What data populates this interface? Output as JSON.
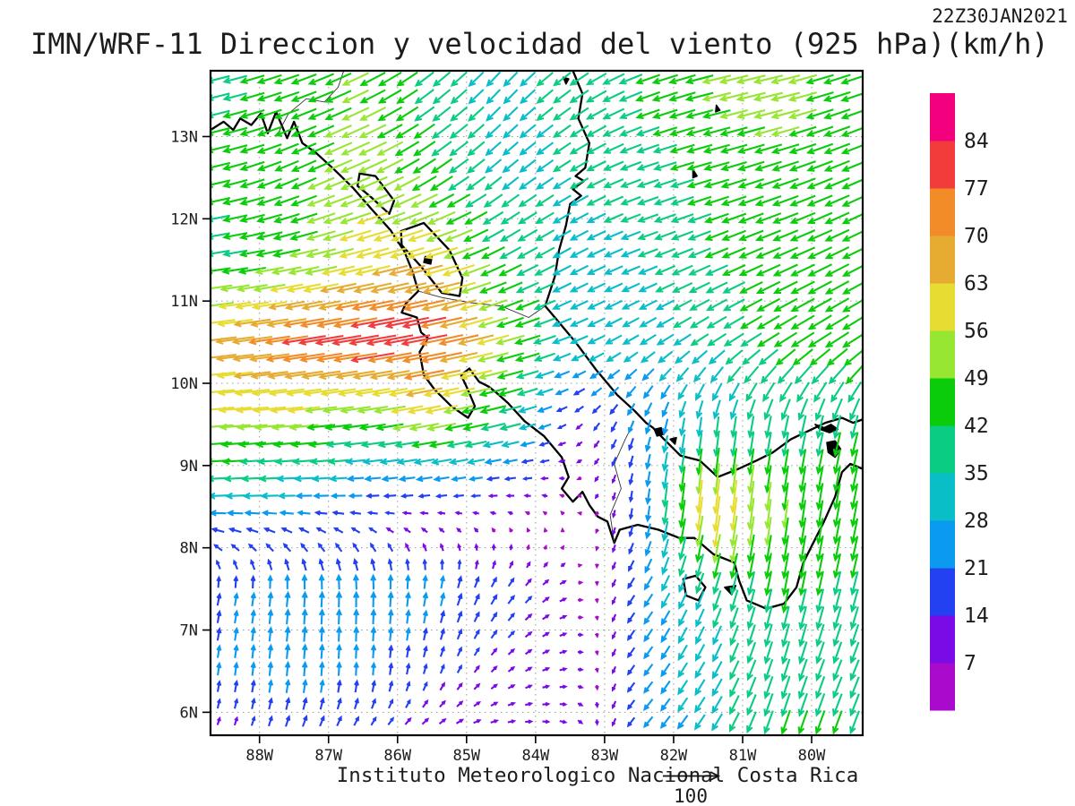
{
  "header": {
    "datetime": "22Z30JAN2021",
    "title": "IMN/WRF-11 Direccion y velocidad del viento (925 hPa)(km/h)"
  },
  "footer": {
    "credit": "Instituto Meteorologico Nacional Costa Rica",
    "reference_value": "100"
  },
  "chart_data": {
    "type": "vector_field_map",
    "model": "IMN/WRF-11",
    "variable": "Direccion y velocidad del viento",
    "level": "925 hPa",
    "units": "km/h",
    "valid_time": "22Z30JAN2021",
    "x_tick_labels": [
      "88W",
      "87W",
      "86W",
      "85W",
      "84W",
      "83W",
      "82W",
      "81W",
      "80W"
    ],
    "y_tick_labels": [
      "13N",
      "12N",
      "11N",
      "10N",
      "9N",
      "8N",
      "7N",
      "6N"
    ],
    "lon_west_range": [
      88.71,
      79.26
    ],
    "lat_range": [
      5.72,
      13.8
    ],
    "grid_dotted": true,
    "reference_vector_kmh": 100,
    "colorbar": {
      "boundaries": [
        7,
        14,
        21,
        28,
        35,
        42,
        49,
        56,
        63,
        70,
        77,
        84
      ],
      "colors_low_to_high": [
        "#AA0ACC",
        "#7A0AE6",
        "#2341F0",
        "#0A9BF0",
        "#0ABEC8",
        "#0ACC82",
        "#0ACC0A",
        "#96E632",
        "#E6DC32",
        "#E6AC32",
        "#F28C28",
        "#F23C3C",
        "#F2007E"
      ]
    },
    "wind_grid": {
      "lons_west": [
        88.5,
        87.5,
        86.5,
        85.5,
        84.5,
        83.5,
        82.5,
        81.5,
        80.5,
        79.5
      ],
      "lats": [
        13.5,
        12.5,
        11.5,
        10.5,
        9.5,
        8.5,
        7.5,
        6.5,
        5.75
      ],
      "u_kmh": [
        [
          -40,
          -42,
          -45,
          -30,
          -22,
          -30,
          -40,
          -48,
          -50,
          -45
        ],
        [
          -42,
          -40,
          -52,
          -38,
          -26,
          -30,
          -35,
          -42,
          -45,
          -42
        ],
        [
          -40,
          -48,
          -56,
          -62,
          -38,
          -30,
          -32,
          -38,
          -42,
          -40
        ],
        [
          -66,
          -76,
          -83,
          -80,
          -52,
          -30,
          -26,
          -30,
          -38,
          -40
        ],
        [
          -54,
          -52,
          -44,
          -52,
          -40,
          -10,
          -8,
          -4,
          -8,
          -10
        ],
        [
          -30,
          -24,
          -18,
          -13,
          -9,
          -4,
          -2,
          -8,
          -6,
          -8
        ],
        [
          4,
          2,
          0,
          4,
          10,
          10,
          -14,
          -12,
          -8,
          -10
        ],
        [
          3,
          2,
          1,
          5,
          9,
          11,
          -14,
          -16,
          -12,
          -14
        ],
        [
          4,
          7,
          9,
          11,
          12,
          10,
          -14,
          -18,
          -14,
          -15
        ]
      ],
      "v_kmh": [
        [
          -10,
          -15,
          -22,
          -24,
          -24,
          -22,
          -15,
          -12,
          -12,
          -15
        ],
        [
          -10,
          -18,
          -22,
          -25,
          -22,
          -18,
          -12,
          -12,
          -15,
          -18
        ],
        [
          -6,
          -10,
          -14,
          -16,
          -20,
          -16,
          -12,
          -16,
          -18,
          -20
        ],
        [
          -8,
          -12,
          -14,
          -16,
          -14,
          -12,
          -16,
          -20,
          -24,
          -26
        ],
        [
          -4,
          -5,
          -6,
          -10,
          -10,
          -6,
          -22,
          -34,
          -38,
          -40
        ],
        [
          -1,
          0,
          0,
          -1,
          1,
          4,
          -20,
          -66,
          -50,
          -45
        ],
        [
          20,
          26,
          27,
          24,
          16,
          4,
          -20,
          -34,
          -42,
          -40
        ],
        [
          21,
          24,
          22,
          15,
          8,
          2,
          -18,
          -28,
          -38,
          -35
        ],
        [
          10,
          17,
          12,
          7,
          2,
          -4,
          -16,
          -26,
          -42,
          -40
        ]
      ]
    }
  },
  "map_geometry": {
    "coastlines": [
      {
        "name": "pacific-central-america-coast",
        "closed": false,
        "thick": true,
        "pts": [
          [
            88.71,
            13.08
          ],
          [
            88.52,
            13.18
          ],
          [
            88.38,
            13.08
          ],
          [
            88.28,
            13.22
          ],
          [
            88.12,
            13.14
          ],
          [
            87.98,
            13.28
          ],
          [
            87.88,
            13.04
          ],
          [
            87.76,
            13.3
          ],
          [
            87.6,
            12.98
          ],
          [
            87.5,
            13.18
          ],
          [
            87.38,
            12.92
          ],
          [
            87.18,
            12.8
          ],
          [
            86.92,
            12.6
          ],
          [
            86.65,
            12.38
          ],
          [
            86.38,
            12.12
          ],
          [
            86.1,
            11.86
          ],
          [
            85.9,
            11.6
          ],
          [
            85.78,
            11.35
          ],
          [
            85.7,
            11.12
          ],
          [
            85.88,
            10.97
          ],
          [
            85.94,
            10.86
          ],
          [
            85.72,
            10.8
          ],
          [
            85.66,
            10.62
          ],
          [
            85.56,
            10.55
          ],
          [
            85.68,
            10.38
          ],
          [
            85.62,
            10.1
          ],
          [
            85.46,
            9.92
          ],
          [
            85.22,
            9.72
          ],
          [
            84.98,
            9.58
          ],
          [
            84.88,
            9.72
          ],
          [
            84.98,
            9.92
          ],
          [
            85.08,
            10.1
          ],
          [
            84.96,
            10.18
          ],
          [
            84.82,
            10.02
          ],
          [
            84.68,
            9.96
          ],
          [
            84.56,
            9.88
          ],
          [
            84.4,
            9.76
          ],
          [
            84.16,
            9.54
          ],
          [
            83.88,
            9.36
          ],
          [
            83.62,
            9.1
          ],
          [
            83.52,
            8.86
          ],
          [
            83.62,
            8.72
          ],
          [
            83.46,
            8.56
          ],
          [
            83.32,
            8.68
          ],
          [
            83.22,
            8.52
          ],
          [
            83.1,
            8.38
          ],
          [
            82.96,
            8.32
          ],
          [
            82.86,
            8.06
          ],
          [
            82.78,
            8.22
          ],
          [
            82.52,
            8.28
          ],
          [
            82.22,
            8.22
          ],
          [
            81.92,
            8.12
          ],
          [
            81.7,
            8.12
          ],
          [
            81.42,
            7.92
          ],
          [
            81.12,
            7.82
          ],
          [
            81.05,
            7.6
          ],
          [
            80.94,
            7.36
          ],
          [
            80.66,
            7.26
          ],
          [
            80.4,
            7.32
          ],
          [
            80.22,
            7.52
          ],
          [
            80.12,
            7.82
          ],
          [
            80.0,
            8.02
          ],
          [
            79.82,
            8.32
          ],
          [
            79.66,
            8.62
          ],
          [
            79.56,
            8.92
          ],
          [
            79.44,
            9.02
          ],
          [
            79.26,
            8.96
          ]
        ]
      },
      {
        "name": "caribbean-coast",
        "closed": false,
        "thick": true,
        "pts": [
          [
            83.46,
            13.8
          ],
          [
            83.32,
            13.52
          ],
          [
            83.38,
            13.22
          ],
          [
            83.22,
            12.92
          ],
          [
            83.28,
            12.62
          ],
          [
            83.42,
            12.52
          ],
          [
            83.3,
            12.46
          ],
          [
            83.46,
            12.36
          ],
          [
            83.34,
            12.28
          ],
          [
            83.5,
            12.18
          ],
          [
            83.56,
            11.92
          ],
          [
            83.66,
            11.62
          ],
          [
            83.72,
            11.3
          ],
          [
            83.86,
            10.94
          ],
          [
            83.7,
            10.78
          ],
          [
            83.42,
            10.5
          ],
          [
            83.12,
            10.16
          ],
          [
            82.82,
            9.86
          ],
          [
            82.56,
            9.66
          ],
          [
            82.4,
            9.52
          ],
          [
            82.3,
            9.46
          ],
          [
            82.14,
            9.32
          ],
          [
            81.9,
            9.12
          ],
          [
            81.62,
            9.06
          ],
          [
            81.36,
            8.86
          ],
          [
            81.06,
            8.96
          ],
          [
            80.8,
            9.06
          ],
          [
            80.56,
            9.16
          ],
          [
            80.3,
            9.32
          ],
          [
            80.05,
            9.42
          ],
          [
            79.8,
            9.52
          ],
          [
            79.56,
            9.58
          ],
          [
            79.4,
            9.52
          ],
          [
            79.26,
            9.56
          ]
        ]
      },
      {
        "name": "lake-managua",
        "closed": true,
        "thick": true,
        "pts": [
          [
            86.55,
            12.55
          ],
          [
            86.32,
            12.52
          ],
          [
            86.05,
            12.22
          ],
          [
            86.12,
            12.06
          ],
          [
            86.38,
            12.26
          ],
          [
            86.58,
            12.4
          ]
        ]
      },
      {
        "name": "lake-nicaragua",
        "closed": true,
        "thick": true,
        "pts": [
          [
            85.95,
            11.85
          ],
          [
            85.62,
            11.95
          ],
          [
            85.25,
            11.62
          ],
          [
            85.06,
            11.28
          ],
          [
            85.1,
            11.06
          ],
          [
            85.36,
            11.1
          ],
          [
            85.66,
            11.42
          ],
          [
            85.94,
            11.68
          ]
        ]
      },
      {
        "name": "ometepe-island",
        "closed": true,
        "thick": false,
        "pts": [
          [
            85.6,
            11.54
          ],
          [
            85.5,
            11.54
          ],
          [
            85.52,
            11.45
          ],
          [
            85.62,
            11.47
          ]
        ]
      },
      {
        "name": "coiba-island",
        "closed": true,
        "thick": true,
        "pts": [
          [
            81.86,
            7.62
          ],
          [
            81.68,
            7.66
          ],
          [
            81.54,
            7.52
          ],
          [
            81.64,
            7.36
          ],
          [
            81.82,
            7.42
          ]
        ]
      },
      {
        "name": "cebaco-island",
        "closed": true,
        "thick": false,
        "pts": [
          [
            81.26,
            7.52
          ],
          [
            81.1,
            7.54
          ],
          [
            81.16,
            7.43
          ]
        ]
      },
      {
        "name": "bocas-islet-1",
        "closed": true,
        "thick": false,
        "pts": [
          [
            82.28,
            9.44
          ],
          [
            82.18,
            9.46
          ],
          [
            82.14,
            9.38
          ],
          [
            82.24,
            9.36
          ]
        ]
      },
      {
        "name": "bocas-islet-2",
        "closed": true,
        "thick": false,
        "pts": [
          [
            82.05,
            9.32
          ],
          [
            81.96,
            9.34
          ],
          [
            81.98,
            9.26
          ]
        ]
      },
      {
        "name": "san-blas-islets",
        "closed": true,
        "thick": false,
        "pts": [
          [
            79.95,
            9.5
          ],
          [
            79.82,
            9.46
          ],
          [
            79.72,
            9.5
          ],
          [
            79.62,
            9.44
          ],
          [
            79.74,
            9.4
          ],
          [
            79.88,
            9.44
          ]
        ]
      },
      {
        "name": "gatun-area",
        "closed": true,
        "thick": false,
        "pts": [
          [
            79.78,
            9.28
          ],
          [
            79.66,
            9.3
          ],
          [
            79.58,
            9.2
          ],
          [
            79.66,
            9.1
          ],
          [
            79.76,
            9.16
          ]
        ]
      },
      {
        "name": "san-andres-island",
        "closed": true,
        "thick": false,
        "pts": [
          [
            81.72,
            12.6
          ],
          [
            81.66,
            12.52
          ],
          [
            81.72,
            12.5
          ]
        ]
      },
      {
        "name": "providencia-island",
        "closed": true,
        "thick": false,
        "pts": [
          [
            81.38,
            13.38
          ],
          [
            81.33,
            13.32
          ],
          [
            81.39,
            13.3
          ]
        ]
      },
      {
        "name": "coastal-lagoon-north",
        "closed": true,
        "thick": false,
        "pts": [
          [
            83.6,
            13.72
          ],
          [
            83.52,
            13.7
          ],
          [
            83.56,
            13.64
          ]
        ]
      }
    ],
    "borders": [
      {
        "name": "honduras-nicaragua-border",
        "pts": [
          [
            87.72,
            13.06
          ],
          [
            87.58,
            13.28
          ],
          [
            87.32,
            13.46
          ],
          [
            87.06,
            13.42
          ],
          [
            86.86,
            13.6
          ],
          [
            86.78,
            13.8
          ]
        ]
      },
      {
        "name": "nicaragua-costarica-border",
        "pts": [
          [
            85.7,
            11.12
          ],
          [
            85.34,
            11.04
          ],
          [
            84.94,
            10.98
          ],
          [
            84.5,
            10.94
          ],
          [
            84.1,
            10.8
          ],
          [
            83.86,
            10.94
          ]
        ]
      },
      {
        "name": "costarica-panama-border",
        "pts": [
          [
            82.86,
            8.06
          ],
          [
            82.92,
            8.4
          ],
          [
            82.76,
            8.72
          ],
          [
            82.86,
            9.02
          ],
          [
            82.7,
            9.32
          ],
          [
            82.58,
            9.52
          ]
        ]
      }
    ]
  }
}
